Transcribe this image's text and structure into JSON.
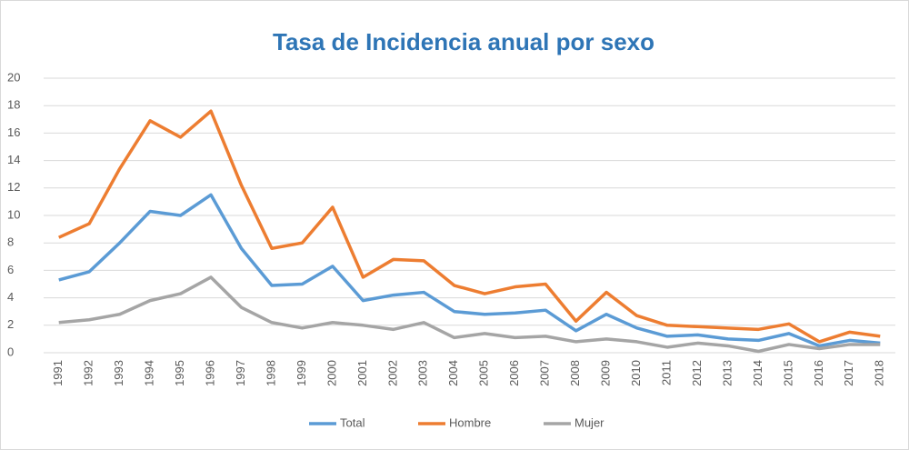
{
  "chart_data": {
    "type": "line",
    "title": "Tasa de Incidencia anual por sexo",
    "categories": [
      "1991",
      "1992",
      "1993",
      "1994",
      "1995",
      "1996",
      "1997",
      "1998",
      "1999",
      "2000",
      "2001",
      "2002",
      "2003",
      "2004",
      "2005",
      "2006",
      "2007",
      "2008",
      "2009",
      "2010",
      "2011",
      "2012",
      "2013",
      "2014",
      "2015",
      "2016",
      "2017",
      "2018"
    ],
    "series": [
      {
        "name": "Total",
        "color": "#5b9bd5",
        "values": [
          5.3,
          5.9,
          8.0,
          10.3,
          10.0,
          11.5,
          7.6,
          4.9,
          5.0,
          6.3,
          3.8,
          4.2,
          4.4,
          3.0,
          2.8,
          2.9,
          3.1,
          1.6,
          2.8,
          1.8,
          1.2,
          1.3,
          1.0,
          0.9,
          1.4,
          0.5,
          0.9,
          0.7
        ]
      },
      {
        "name": "Hombre",
        "color": "#ed7d31",
        "values": [
          8.4,
          9.4,
          13.4,
          16.9,
          15.7,
          17.6,
          12.2,
          7.6,
          8.0,
          10.6,
          5.5,
          6.8,
          6.7,
          4.9,
          4.3,
          4.8,
          5.0,
          2.3,
          4.4,
          2.7,
          2.0,
          1.9,
          1.8,
          1.7,
          2.1,
          0.8,
          1.5,
          1.2
        ]
      },
      {
        "name": "Mujer",
        "color": "#a5a5a5",
        "values": [
          2.2,
          2.4,
          2.8,
          3.8,
          4.3,
          5.5,
          3.3,
          2.2,
          1.8,
          2.2,
          2.0,
          1.7,
          2.2,
          1.1,
          1.4,
          1.1,
          1.2,
          0.8,
          1.0,
          0.8,
          0.4,
          0.7,
          0.5,
          0.1,
          0.6,
          0.3,
          0.6,
          0.6
        ]
      }
    ],
    "ylim": [
      0,
      20
    ],
    "yticks": [
      0,
      2,
      4,
      6,
      8,
      10,
      12,
      14,
      16,
      18,
      20
    ],
    "grid": true,
    "legend": "bottom"
  }
}
